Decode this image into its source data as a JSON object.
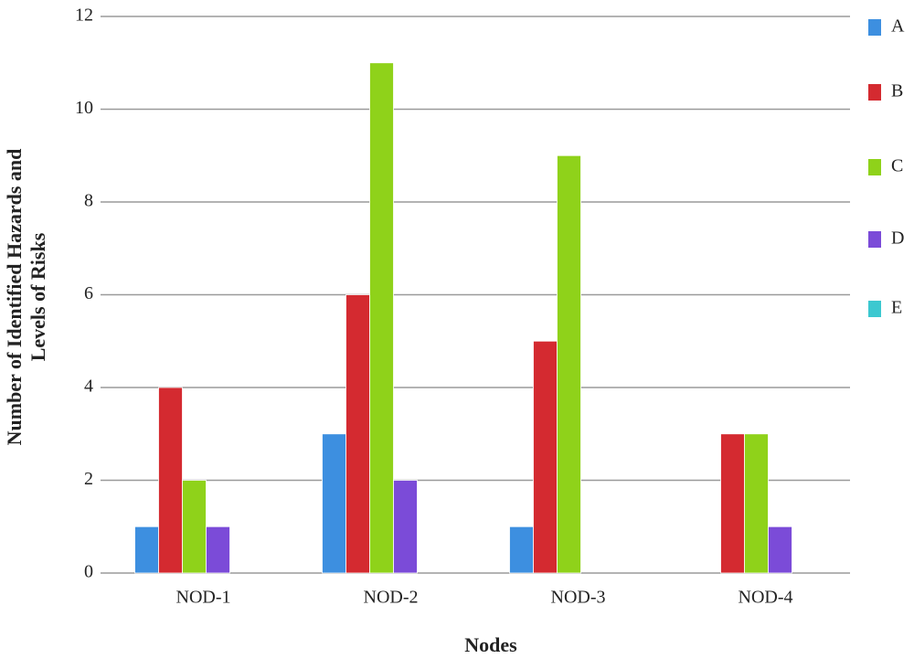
{
  "chart_data": {
    "type": "bar",
    "y_label": [
      "Number of Identified Hazards and",
      "Levels of Risks"
    ],
    "x_label": "Nodes",
    "categories": [
      "NOD-1",
      "NOD-2",
      "NOD-3",
      "NOD-4"
    ],
    "series": [
      {
        "name": "A",
        "color": "#3d8fe0",
        "values": [
          1,
          3,
          1,
          0
        ]
      },
      {
        "name": "B",
        "color": "#d42a30",
        "values": [
          4,
          6,
          5,
          3
        ]
      },
      {
        "name": "C",
        "color": "#8fd21a",
        "values": [
          2,
          11,
          9,
          3
        ]
      },
      {
        "name": "D",
        "color": "#7b4bd8",
        "values": [
          1,
          2,
          0,
          1
        ]
      },
      {
        "name": "E",
        "color": "#3cc8d0",
        "values": [
          0,
          0,
          0,
          0
        ]
      }
    ],
    "ylim": [
      0,
      12
    ],
    "yticks": [
      0,
      2,
      4,
      6,
      8,
      10,
      12
    ],
    "grid": true,
    "legend": "right"
  }
}
